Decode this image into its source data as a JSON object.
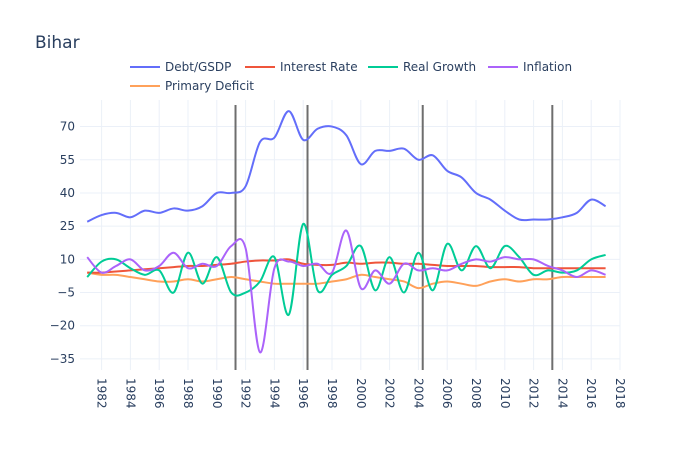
{
  "chart_data": {
    "type": "line",
    "title": "Bihar",
    "xlabel": "",
    "ylabel": "",
    "xlim": [
      1980.5,
      2018
    ],
    "ylim": [
      -40,
      82
    ],
    "x_ticks": [
      1982,
      1984,
      1986,
      1988,
      1990,
      1992,
      1994,
      1996,
      1998,
      2000,
      2002,
      2004,
      2006,
      2008,
      2010,
      2012,
      2014,
      2016,
      2018
    ],
    "y_ticks": [
      -35,
      -20,
      -5,
      10,
      25,
      40,
      55,
      70
    ],
    "grid": true,
    "legend_position": "top",
    "vertical_lines": [
      1991.3,
      1996.3,
      2004.3,
      2013.3
    ],
    "x": [
      1981,
      1982,
      1983,
      1984,
      1985,
      1986,
      1987,
      1988,
      1989,
      1990,
      1991,
      1992,
      1993,
      1994,
      1995,
      1996,
      1997,
      1998,
      1999,
      2000,
      2001,
      2002,
      2003,
      2004,
      2005,
      2006,
      2007,
      2008,
      2009,
      2010,
      2011,
      2012,
      2013,
      2014,
      2015,
      2016,
      2017
    ],
    "series": [
      {
        "name": "Debt/GSDP",
        "color": "#636efa",
        "values": [
          27,
          30,
          31,
          29,
          32,
          31,
          33,
          32,
          34,
          40,
          40,
          43,
          63,
          65,
          77,
          64,
          69,
          70,
          66,
          53,
          59,
          59,
          60,
          55,
          57,
          50,
          47,
          40,
          37,
          32,
          28,
          28,
          28,
          29,
          31,
          37,
          34
        ]
      },
      {
        "name": "Interest Rate",
        "color": "#ef553b",
        "values": [
          4,
          4,
          4.5,
          5,
          5.5,
          6,
          6.5,
          7,
          7,
          7.5,
          8,
          9,
          9.5,
          9.5,
          10,
          8,
          7.5,
          7.5,
          8.5,
          8,
          8.5,
          8.5,
          8,
          8,
          7.5,
          7,
          7,
          7,
          6.5,
          6.5,
          6.5,
          6,
          6,
          6,
          6,
          6,
          6
        ]
      },
      {
        "name": "Real Growth",
        "color": "#00cc96",
        "values": [
          2,
          9,
          10,
          6,
          3,
          5,
          -5,
          13,
          -1,
          11,
          -5,
          -5,
          0,
          11,
          -15,
          26,
          -4,
          3,
          7,
          16,
          -4,
          11,
          -5,
          13,
          -4,
          17,
          5,
          16,
          6,
          16,
          11,
          3,
          5,
          4,
          5,
          10,
          12
        ]
      },
      {
        "name": "Inflation",
        "color": "#ab63fa",
        "values": [
          11,
          4,
          7,
          10,
          5,
          7,
          13,
          6,
          8,
          7,
          16,
          15,
          -32,
          6,
          9,
          7,
          8,
          4,
          23,
          -3,
          5,
          -1,
          8,
          5,
          6,
          5,
          8,
          10,
          9,
          11,
          10,
          10,
          7,
          5,
          2,
          5,
          3
        ]
      },
      {
        "name": "Primary Deficit",
        "color": "#ffa15a",
        "values": [
          4,
          3,
          3,
          2,
          1,
          0,
          0,
          1,
          0,
          1,
          2,
          1,
          0,
          -1,
          -1,
          -1,
          -1,
          0,
          1,
          3,
          2,
          1,
          0,
          -3,
          -1,
          0,
          -1,
          -2,
          0,
          1,
          0,
          1,
          1,
          2,
          2,
          2,
          2
        ]
      }
    ]
  }
}
